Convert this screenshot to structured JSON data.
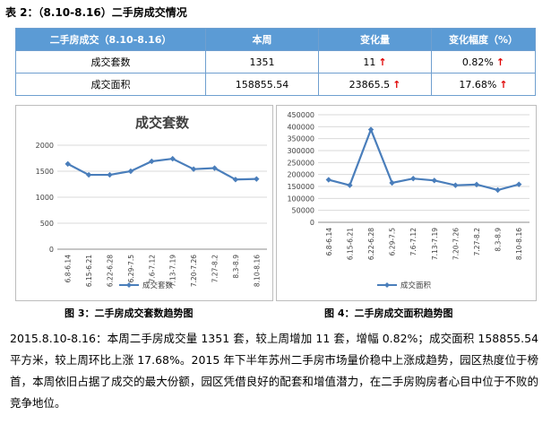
{
  "table_caption": "表 2：（8.10-8.16）二手房成交情况",
  "table": {
    "headers": [
      "二手房成交（8.10-8.16）",
      "本周",
      "变化量",
      "变化幅度（%）"
    ],
    "rows": [
      {
        "label": "成交套数",
        "value": "1351",
        "change": "11",
        "pct": "0.82%"
      },
      {
        "label": "成交面积",
        "value": "158855.54",
        "change": "23865.5",
        "pct": "17.68%"
      }
    ],
    "arrow": "↑",
    "arrow_color": "#e00000",
    "header_color": "#5b9bd5"
  },
  "chart_data": [
    {
      "type": "line",
      "title": "成交套数",
      "categories": [
        "6.8-6.14",
        "6.15-6.21",
        "6.22-6.28",
        "6.29-7.5",
        "7.6-7.12",
        "7.13-7.19",
        "7.20-7.26",
        "7.27-8.2",
        "8.3-8.9",
        "8.10-8.16"
      ],
      "series": [
        {
          "name": "成交套数",
          "values": [
            1640,
            1430,
            1430,
            1500,
            1690,
            1740,
            1540,
            1560,
            1340,
            1351
          ]
        }
      ],
      "ylim": [
        0,
        2000
      ],
      "yticks": [
        "0",
        "500",
        "1000",
        "1500",
        "2000"
      ],
      "grid": true,
      "legend": "bottom",
      "color": "#4a7ebb"
    },
    {
      "type": "line",
      "title": "",
      "categories": [
        "6.8-6.14",
        "6.15-6.21",
        "6.22-6.28",
        "6.29-7.5",
        "7.6-7.12",
        "7.13-7.19",
        "7.20-7.26",
        "7.27-8.2",
        "8.3-8.9",
        "8.10-8.16"
      ],
      "series": [
        {
          "name": "成交面积",
          "values": [
            178000,
            155000,
            388000,
            165000,
            183000,
            175000,
            155000,
            158000,
            135000,
            158856
          ]
        }
      ],
      "ylim": [
        0,
        450000
      ],
      "yticks": [
        "0",
        "50000",
        "100000",
        "150000",
        "200000",
        "250000",
        "300000",
        "350000",
        "400000",
        "450000"
      ],
      "grid": true,
      "legend": "bottom",
      "color": "#4a7ebb"
    }
  ],
  "fig3_caption": "图 3：二手房成交套数趋势图",
  "fig4_caption": "图 4：二手房成交面积趋势图",
  "paragraph": "2015.8.10-8.16：本周二手房成交量 1351 套，较上周增加 11 套，增幅 0.82%；成交面积 158855.54 平方米，较上周环比上涨 17.68%。2015 年下半年苏州二手房市场量价稳中上涨成趋势，园区热度位于榜首，本周依旧占据了成交的最大份额，园区凭借良好的配套和增值潜力，在二手房购房者心目中位于不败的竞争地位。"
}
